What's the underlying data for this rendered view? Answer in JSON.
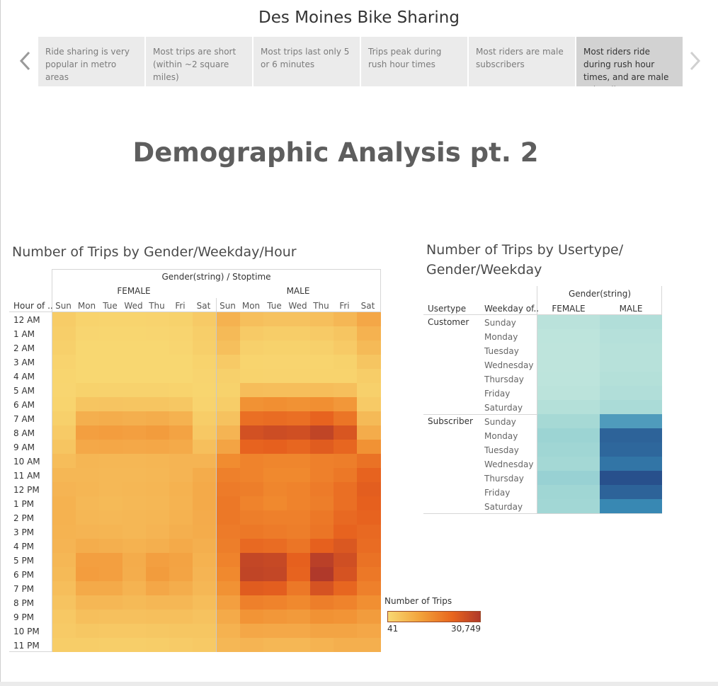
{
  "story": {
    "title": "Des Moines Bike Sharing",
    "points": [
      "Ride sharing is very popular in metro areas",
      "Most trips are short (within ~2 square miles)",
      "Most trips last only 5 or 6 minutes",
      "Trips peak during rush hour times",
      "Most riders are male subscribers",
      "Most riders ride during rush hour times, and are male subscribers"
    ],
    "active_index": 5
  },
  "main_title": "Demographic Analysis pt. 2",
  "heatmap": {
    "title": "Number of Trips by Gender/Weekday/Hour",
    "top_header": "Gender(string) / Stoptime",
    "row_header": "Hour of ..",
    "genders": [
      "FEMALE",
      "MALE"
    ],
    "weekdays": [
      "Sun",
      "Mon",
      "Tue",
      "Wed",
      "Thu",
      "Fri",
      "Sat"
    ],
    "hours": [
      "12 AM",
      "1 AM",
      "2 AM",
      "3 AM",
      "4 AM",
      "5 AM",
      "6 AM",
      "7 AM",
      "8 AM",
      "9 AM",
      "10 AM",
      "11 AM",
      "12 PM",
      "1 PM",
      "2 PM",
      "3 PM",
      "4 PM",
      "5 PM",
      "6 PM",
      "7 PM",
      "8 PM",
      "9 PM",
      "10 PM",
      "11 PM"
    ],
    "legend_title": "Number of Trips",
    "legend_min": "41",
    "legend_max": "30,749",
    "color_low": "#f8d872",
    "color_high": "#b0392a"
  },
  "chart_data": [
    {
      "type": "heatmap",
      "title": "Number of Trips by Gender/Weekday/Hour",
      "x_groups": [
        "FEMALE",
        "MALE"
      ],
      "x": [
        "Sun",
        "Mon",
        "Tue",
        "Wed",
        "Thu",
        "Fri",
        "Sat"
      ],
      "y": [
        "12 AM",
        "1 AM",
        "2 AM",
        "3 AM",
        "4 AM",
        "5 AM",
        "6 AM",
        "7 AM",
        "8 AM",
        "9 AM",
        "10 AM",
        "11 AM",
        "12 PM",
        "1 PM",
        "2 PM",
        "3 PM",
        "4 PM",
        "5 PM",
        "6 PM",
        "7 PM",
        "8 PM",
        "9 PM",
        "10 PM",
        "11 PM"
      ],
      "range": [
        41,
        30749
      ],
      "values": {
        "FEMALE": [
          [
            2200,
            1000,
            800,
            800,
            900,
            1200,
            2500
          ],
          [
            1800,
            500,
            400,
            400,
            500,
            700,
            1900
          ],
          [
            1500,
            300,
            250,
            250,
            300,
            500,
            1600
          ],
          [
            900,
            200,
            150,
            150,
            200,
            300,
            1000
          ],
          [
            600,
            300,
            250,
            250,
            300,
            300,
            700
          ],
          [
            500,
            1200,
            1100,
            1100,
            1100,
            1000,
            600
          ],
          [
            800,
            3500,
            3600,
            3500,
            3500,
            3200,
            900
          ],
          [
            1500,
            7500,
            7800,
            7500,
            7800,
            7000,
            2000
          ],
          [
            2500,
            10500,
            10800,
            10500,
            11000,
            9800,
            3000
          ],
          [
            3500,
            8800,
            9000,
            8800,
            9000,
            8500,
            4500
          ],
          [
            5000,
            6200,
            6000,
            6000,
            6200,
            6500,
            6500
          ],
          [
            6000,
            6000,
            5800,
            5800,
            6000,
            6500,
            8000
          ],
          [
            6500,
            6200,
            5800,
            6000,
            6200,
            7000,
            8500
          ],
          [
            7000,
            5800,
            5500,
            5800,
            6000,
            6800,
            8500
          ],
          [
            7000,
            6000,
            5800,
            6000,
            6200,
            7000,
            8200
          ],
          [
            6800,
            6500,
            6300,
            6000,
            6500,
            7500,
            8000
          ],
          [
            6500,
            7800,
            7500,
            7000,
            7500,
            8500,
            7500
          ],
          [
            6000,
            10500,
            10500,
            8000,
            10500,
            9800,
            7000
          ],
          [
            5500,
            10800,
            10500,
            7800,
            11000,
            9500,
            6500
          ],
          [
            4800,
            8500,
            8500,
            6800,
            9000,
            7800,
            6000
          ],
          [
            3800,
            6000,
            6000,
            5500,
            6000,
            6000,
            5000
          ],
          [
            3000,
            4500,
            4300,
            4300,
            4500,
            4500,
            4000
          ],
          [
            2500,
            3200,
            3000,
            3000,
            3200,
            3300,
            3300
          ],
          [
            2000,
            2000,
            1800,
            1800,
            2000,
            2300,
            2800
          ]
        ],
        "MALE": [
          [
            7000,
            4500,
            4000,
            4000,
            4500,
            6000,
            9000
          ],
          [
            5500,
            2500,
            2000,
            2000,
            2500,
            3500,
            7000
          ],
          [
            4500,
            1500,
            1200,
            1200,
            1500,
            2500,
            5500
          ],
          [
            2500,
            800,
            700,
            700,
            800,
            1200,
            3500
          ],
          [
            1500,
            1000,
            900,
            900,
            1000,
            1000,
            2000
          ],
          [
            1200,
            5000,
            4800,
            4800,
            5000,
            4500,
            1500
          ],
          [
            2000,
            13000,
            13500,
            13000,
            13500,
            12000,
            2500
          ],
          [
            4000,
            19000,
            19500,
            19000,
            21000,
            18000,
            5500
          ],
          [
            6500,
            25000,
            26000,
            25500,
            28000,
            24000,
            8000
          ],
          [
            9500,
            21000,
            21500,
            20500,
            22500,
            20500,
            13000
          ],
          [
            14000,
            15500,
            15000,
            15000,
            16000,
            16500,
            18500
          ],
          [
            16000,
            15500,
            14500,
            14500,
            16000,
            17500,
            21000
          ],
          [
            17000,
            16500,
            15000,
            15500,
            17000,
            19000,
            22000
          ],
          [
            17500,
            15500,
            14500,
            15500,
            16500,
            19000,
            21500
          ],
          [
            17500,
            16500,
            16000,
            16000,
            17500,
            20000,
            21000
          ],
          [
            17000,
            17500,
            17000,
            16500,
            18000,
            21000,
            20000
          ],
          [
            16500,
            20000,
            19500,
            18000,
            21500,
            23500,
            19500
          ],
          [
            15500,
            27500,
            27000,
            21500,
            29000,
            25500,
            18500
          ],
          [
            14500,
            28000,
            27500,
            21000,
            30749,
            24500,
            17500
          ],
          [
            13000,
            22500,
            22000,
            17500,
            24500,
            20500,
            16000
          ],
          [
            10500,
            16000,
            15500,
            14500,
            16500,
            15500,
            13500
          ],
          [
            8500,
            12500,
            12000,
            11500,
            13000,
            12500,
            11000
          ],
          [
            7000,
            9000,
            8800,
            8800,
            9500,
            9500,
            9000
          ],
          [
            6000,
            6500,
            6000,
            6000,
            6800,
            7500,
            7500
          ]
        ]
      }
    },
    {
      "type": "heatmap",
      "title": "Number of Trips by Usertype/ Gender/Weekday",
      "x": [
        "FEMALE",
        "MALE"
      ],
      "y_groups": [
        "Customer",
        "Subscriber"
      ],
      "y": [
        "Sunday",
        "Monday",
        "Tuesday",
        "Wednesday",
        "Thursday",
        "Friday",
        "Saturday"
      ],
      "values": {
        "Customer": [
          [
            7000,
            11000
          ],
          [
            5500,
            9000
          ],
          [
            5000,
            8500
          ],
          [
            5000,
            8500
          ],
          [
            5500,
            9500
          ],
          [
            6500,
            11000
          ],
          [
            9500,
            14500
          ]
        ],
        "Subscriber": [
          [
            16500,
            36000
          ],
          [
            20000,
            48000
          ],
          [
            19000,
            47000
          ],
          [
            17000,
            44000
          ],
          [
            21000,
            52000
          ],
          [
            19000,
            48000
          ],
          [
            18000,
            40000
          ]
        ]
      }
    }
  ],
  "usertype_table": {
    "title": "Number of Trips by Usertype/ Gender/Weekday",
    "col_group_header": "Gender(string)",
    "usertype_header": "Usertype",
    "weekday_header": "Weekday of..",
    "genders": [
      "FEMALE",
      "MALE"
    ],
    "usertypes": [
      "Customer",
      "Subscriber"
    ],
    "weekdays": [
      "Sunday",
      "Monday",
      "Tuesday",
      "Wednesday",
      "Thursday",
      "Friday",
      "Saturday"
    ]
  }
}
